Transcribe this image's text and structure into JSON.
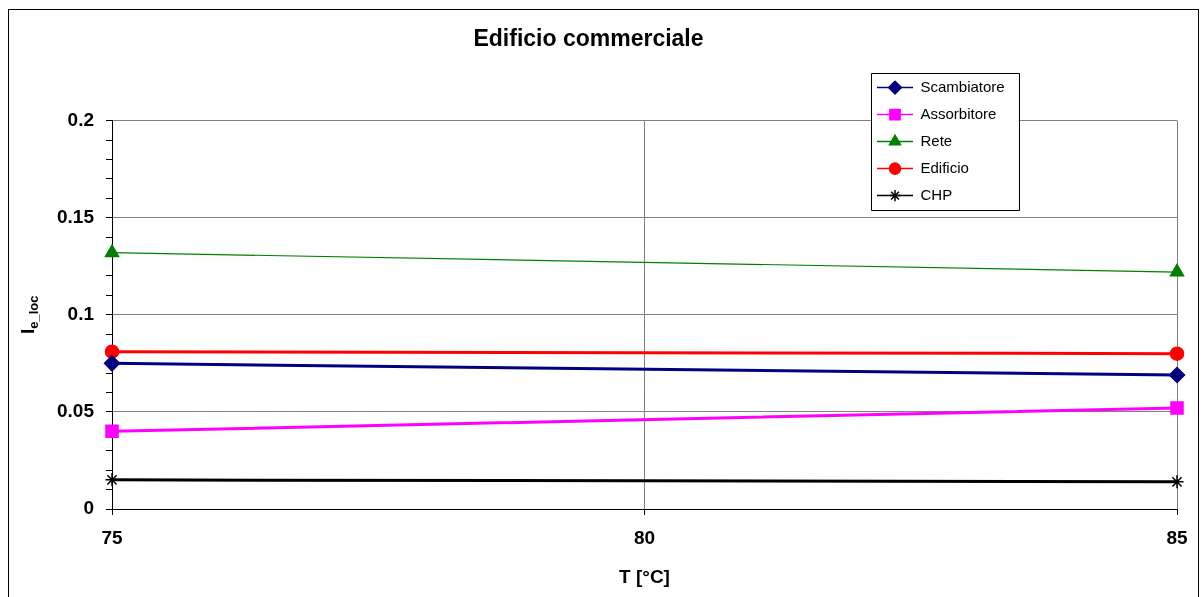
{
  "chart_data": {
    "type": "line",
    "title": "Edificio commerciale",
    "xlabel": "T [°C]",
    "ylabel": "I$_{e_loc}$",
    "x": [
      75,
      85
    ],
    "xlim": [
      75,
      85
    ],
    "xticks": [
      75,
      80,
      85
    ],
    "ylim": [
      0,
      0.2
    ],
    "yticks": [
      0,
      {
        "value": 0.01,
        "label": null
      },
      {
        "value": 0.02,
        "label": null
      },
      {
        "value": 0.03,
        "label": null
      },
      {
        "value": 0.04,
        "label": null
      },
      0.05,
      {
        "value": 0.06,
        "label": null
      },
      {
        "value": 0.07,
        "label": null
      },
      {
        "value": 0.08,
        "label": null
      },
      {
        "value": 0.09,
        "label": null
      },
      0.1,
      {
        "value": 0.11,
        "label": null
      },
      {
        "value": 0.12,
        "label": null
      },
      {
        "value": 0.13,
        "label": null
      },
      {
        "value": 0.14,
        "label": null
      },
      0.15,
      {
        "value": 0.16,
        "label": null
      },
      {
        "value": 0.17,
        "label": null
      },
      {
        "value": 0.18,
        "label": null
      },
      {
        "value": 0.19,
        "label": null
      },
      0.2
    ],
    "grid": true,
    "legend": "top right",
    "series": [
      {
        "name": "Scambiatore",
        "color": "#000080",
        "marker": "diamond",
        "values": [
          0.075,
          0.069
        ]
      },
      {
        "name": "Assorbitore",
        "color": "#ff00ff",
        "marker": "square",
        "values": [
          0.04,
          0.052
        ]
      },
      {
        "name": "Rete",
        "color": "#008000",
        "marker": "triangle",
        "values": [
          0.132,
          0.122
        ]
      },
      {
        "name": "Edificio",
        "color": "#ff0000",
        "marker": "circle",
        "values": [
          0.081,
          0.08
        ]
      },
      {
        "name": "CHP",
        "color": "#000000",
        "marker": "cross",
        "values": [
          0.015,
          0.014
        ]
      }
    ]
  }
}
